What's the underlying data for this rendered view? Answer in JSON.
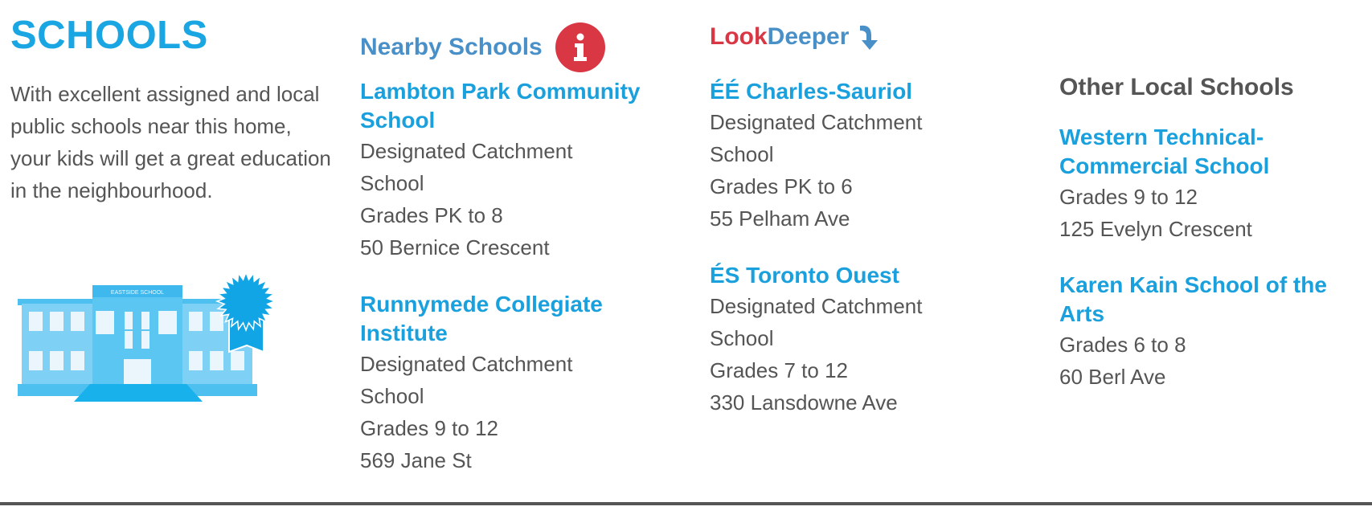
{
  "section": {
    "title": "SCHOOLS",
    "intro": "With excellent assigned and local public schools near this home, your kids will get a great education in the neighbourhood.",
    "illustration_sign": "EASTSIDE SCHOOL"
  },
  "nearby": {
    "heading": "Nearby Schools",
    "icon": "info-icon",
    "schools": [
      {
        "name": "Lambton Park Community School",
        "type": "Designated Catchment School",
        "grades": "Grades PK to 8",
        "address": "50 Bernice Crescent"
      },
      {
        "name": "Runnymede Collegiate Institute",
        "type": "Designated Catchment School",
        "grades": "Grades 9 to 12",
        "address": "569 Jane St"
      }
    ]
  },
  "lookdeeper": {
    "heading_part1": "Look",
    "heading_part2": "Deeper",
    "icon": "curved-arrow-down-icon",
    "schools": [
      {
        "name": "ÉÉ Charles-Sauriol",
        "type": "Designated Catchment School",
        "grades": "Grades PK to 6",
        "address": "55 Pelham Ave"
      },
      {
        "name": "ÉS Toronto Ouest",
        "type": "Designated Catchment School",
        "grades": "Grades 7 to 12",
        "address": "330 Lansdowne Ave"
      }
    ]
  },
  "other": {
    "heading": "Other Local Schools",
    "schools": [
      {
        "name": "Western Technical-Commercial School",
        "grades": "Grades 9 to 12",
        "address": "125 Evelyn Crescent"
      },
      {
        "name": "Karen Kain School of the Arts",
        "grades": "Grades 6 to 8",
        "address": "60 Berl Ave"
      }
    ]
  },
  "colors": {
    "title": "#1aa6e2",
    "heading": "#4a90c8",
    "school_name": "#1aa0dc",
    "accent_red": "#d93744",
    "text": "#555555"
  }
}
